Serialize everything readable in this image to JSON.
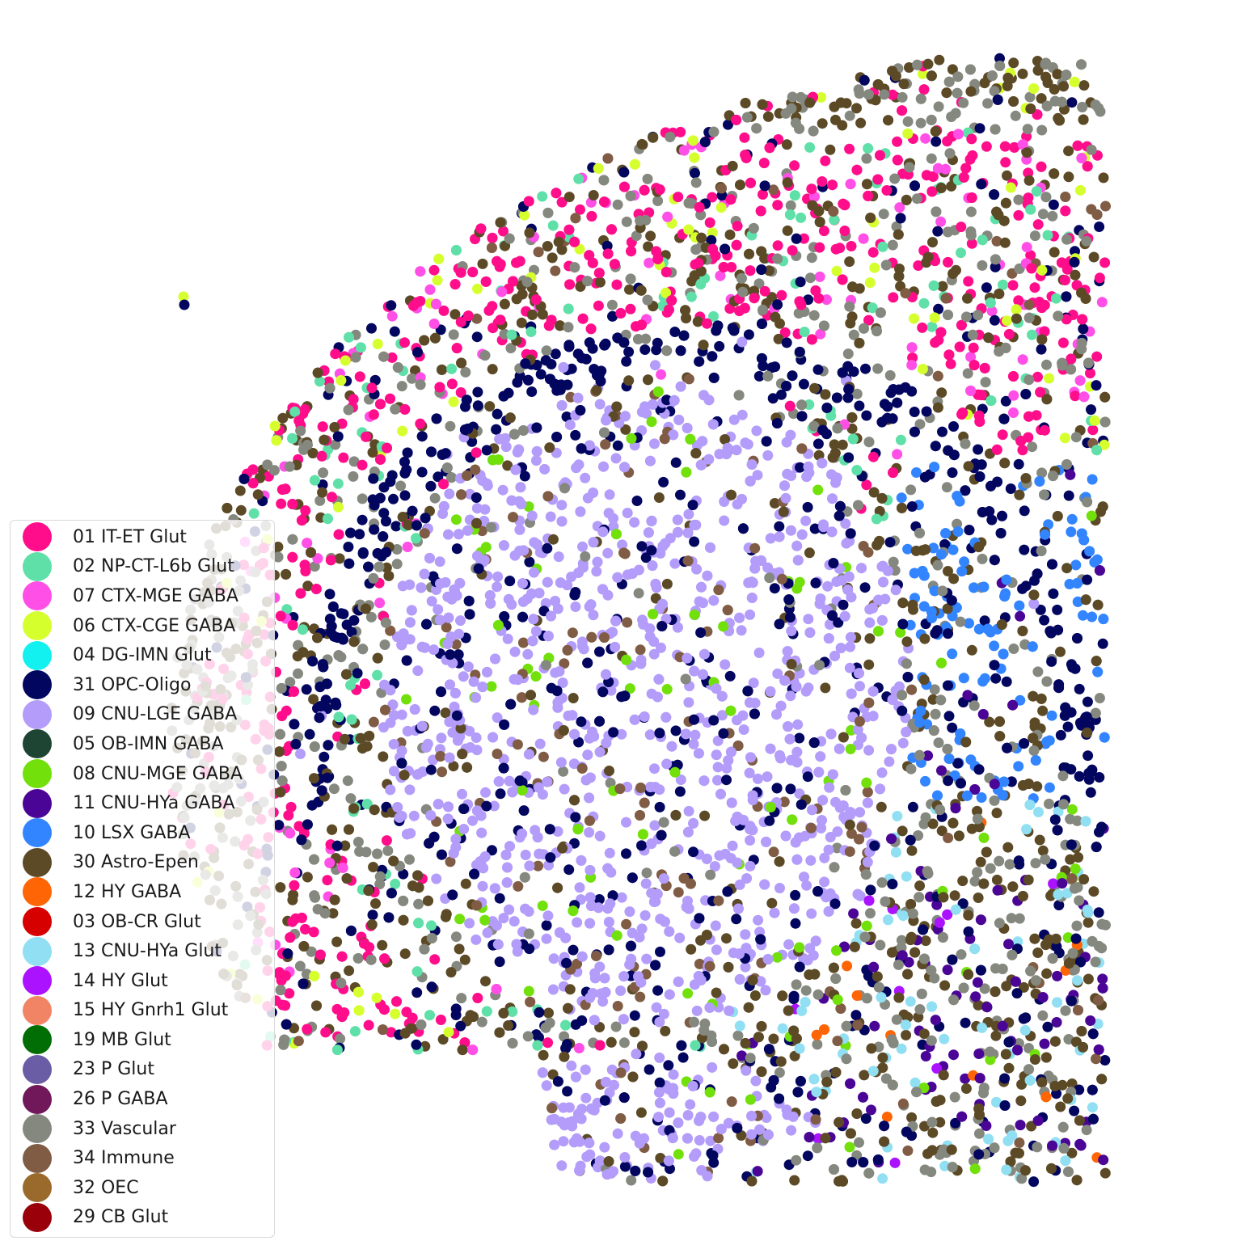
{
  "chart_data": {
    "type": "scatter",
    "title": "",
    "xlabel": "",
    "ylabel": "",
    "axes_visible": false,
    "grid": false,
    "legend_placement": "lower-left",
    "series": [
      {
        "name": "01 IT-ET Glut",
        "color": "#ff0d8a"
      },
      {
        "name": "02 NP-CT-L6b Glut",
        "color": "#5fe0a8"
      },
      {
        "name": "07 CTX-MGE GABA",
        "color": "#ff4fe6"
      },
      {
        "name": "06 CTX-CGE GABA",
        "color": "#d6ff2e"
      },
      {
        "name": "04 DG-IMN Glut",
        "color": "#13f0f0"
      },
      {
        "name": "31 OPC-Oligo",
        "color": "#03065f"
      },
      {
        "name": "09 CNU-LGE GABA",
        "color": "#b39cfa"
      },
      {
        "name": "05 OB-IMN GABA",
        "color": "#1e4534"
      },
      {
        "name": "08 CNU-MGE GABA",
        "color": "#72e00a"
      },
      {
        "name": "11 CNU-HYa GABA",
        "color": "#4a0596"
      },
      {
        "name": "10 LSX GABA",
        "color": "#3385ff"
      },
      {
        "name": "30 Astro-Epen",
        "color": "#5c4a27"
      },
      {
        "name": "12 HY GABA",
        "color": "#ff6405"
      },
      {
        "name": "03 OB-CR Glut",
        "color": "#d60000"
      },
      {
        "name": "13 CNU-HYa Glut",
        "color": "#91dff2"
      },
      {
        "name": "14 HY Glut",
        "color": "#ab12ff"
      },
      {
        "name": "15 HY Gnrh1 Glut",
        "color": "#f28466"
      },
      {
        "name": "19 MB Glut",
        "color": "#006e05"
      },
      {
        "name": "23 P Glut",
        "color": "#6b5ca6"
      },
      {
        "name": "26 P GABA",
        "color": "#70185a"
      },
      {
        "name": "33 Vascular",
        "color": "#85887f"
      },
      {
        "name": "34 Immune",
        "color": "#805c45"
      },
      {
        "name": "32 OEC",
        "color": "#996a2b"
      },
      {
        "name": "29 CB Glut",
        "color": "#99000a"
      }
    ]
  }
}
